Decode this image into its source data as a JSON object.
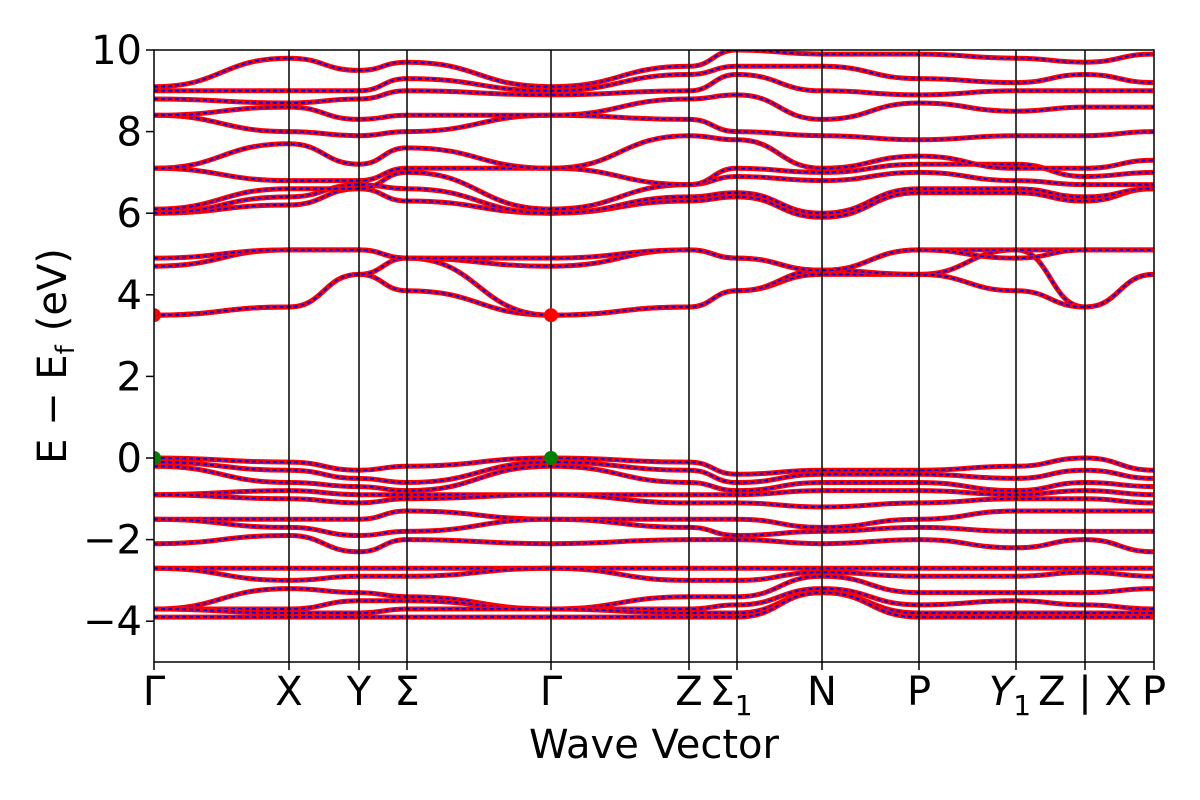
{
  "chart_data": {
    "type": "line",
    "title": "",
    "xlabel": "Wave Vector",
    "ylabel": "E − E",
    "ylabel_subscript": "f",
    "ylabel_unit": "(eV)",
    "ylim": [
      -5,
      10
    ],
    "xlim": [
      0,
      100
    ],
    "yticks": [
      -4,
      -2,
      0,
      2,
      4,
      6,
      8,
      10
    ],
    "ytick_labels": [
      "−4",
      "−2",
      "0",
      "2",
      "4",
      "6",
      "8",
      "10"
    ],
    "grid": false,
    "legend": "none",
    "kpoints": [
      {
        "x": 0,
        "label": "Γ"
      },
      {
        "x": 13.5,
        "label": "X"
      },
      {
        "x": 20.5,
        "label": "Y"
      },
      {
        "x": 25.3,
        "label": "Σ"
      },
      {
        "x": 39.7,
        "label": "Γ"
      },
      {
        "x": 53.5,
        "label": "Z"
      },
      {
        "x": 58.3,
        "label": "Σ",
        "sub": "1"
      },
      {
        "x": 66.8,
        "label": "N"
      },
      {
        "x": 76.5,
        "label": "P"
      },
      {
        "x": 86.2,
        "label": "Y",
        "sub": "1",
        "italic": true
      },
      {
        "x": 93.1,
        "label": "Z | X"
      },
      {
        "x": 100,
        "label": "P"
      }
    ],
    "band_style": {
      "outer_color": "#ff0000",
      "inner_color": "#0000ff",
      "dashed_inner": true
    },
    "extrema_markers": [
      {
        "kind": "cbm",
        "x": 0,
        "y": 3.5,
        "color": "#ff0000"
      },
      {
        "kind": "cbm",
        "x": 39.7,
        "y": 3.5,
        "color": "#ff0000"
      },
      {
        "kind": "vbm",
        "x": 0,
        "y": 0,
        "color": "#008000"
      },
      {
        "kind": "vbm",
        "x": 39.7,
        "y": 0,
        "color": "#008000"
      }
    ],
    "series": [
      {
        "values": [
          3.5,
          3.7,
          4.5,
          4.1,
          3.5,
          3.7,
          4.1,
          4.5,
          4.5,
          5.1,
          3.7,
          4.5
        ]
      },
      {
        "values": [
          3.5,
          3.7,
          4.5,
          4.9,
          3.5,
          3.7,
          4.1,
          4.6,
          4.5,
          4.1,
          3.7,
          4.5
        ]
      },
      {
        "values": [
          4.7,
          5.1,
          5.1,
          4.9,
          4.7,
          5.1,
          4.9,
          4.6,
          5.1,
          5.1,
          5.1,
          5.1
        ]
      },
      {
        "values": [
          4.9,
          5.1,
          5.1,
          4.9,
          4.9,
          5.1,
          4.9,
          4.6,
          5.1,
          4.9,
          5.1,
          5.1
        ]
      },
      {
        "values": [
          6.0,
          6.2,
          6.6,
          6.3,
          6.0,
          6.3,
          6.4,
          5.9,
          6.5,
          6.5,
          6.3,
          6.6
        ]
      },
      {
        "values": [
          6.0,
          6.4,
          6.7,
          6.6,
          6.0,
          6.4,
          6.5,
          6.0,
          6.6,
          6.6,
          6.4,
          6.6
        ]
      },
      {
        "values": [
          6.1,
          6.6,
          6.6,
          7.0,
          6.1,
          6.7,
          6.9,
          6.8,
          7.0,
          6.8,
          6.7,
          6.7
        ]
      },
      {
        "values": [
          7.1,
          6.8,
          6.8,
          7.1,
          7.1,
          6.7,
          7.1,
          7.0,
          7.2,
          7.2,
          6.9,
          7.0
        ]
      },
      {
        "values": [
          7.1,
          7.7,
          7.2,
          7.6,
          7.1,
          7.9,
          7.8,
          7.1,
          7.4,
          7.1,
          7.1,
          7.3
        ]
      },
      {
        "values": [
          8.4,
          8.0,
          7.9,
          8.0,
          8.4,
          8.3,
          8.0,
          7.9,
          7.8,
          7.9,
          7.9,
          8.0
        ]
      },
      {
        "values": [
          8.4,
          8.6,
          8.3,
          8.4,
          8.4,
          8.8,
          8.9,
          8.3,
          8.7,
          8.5,
          8.6,
          8.6
        ]
      },
      {
        "values": [
          8.8,
          8.7,
          8.8,
          9.0,
          8.9,
          9.0,
          9.4,
          9.0,
          8.9,
          9.0,
          9.0,
          9.0
        ]
      },
      {
        "values": [
          9.0,
          9.0,
          9.0,
          9.3,
          9.0,
          9.4,
          9.6,
          9.6,
          9.3,
          9.2,
          9.4,
          9.2
        ]
      },
      {
        "values": [
          9.1,
          9.8,
          9.5,
          9.7,
          9.1,
          9.6,
          10.0,
          9.9,
          9.9,
          9.8,
          9.7,
          9.9
        ]
      },
      {
        "values": [
          0.0,
          -0.1,
          -0.3,
          -0.2,
          0.0,
          -0.1,
          -0.4,
          -0.3,
          -0.3,
          -0.2,
          0.0,
          -0.3
        ]
      },
      {
        "values": [
          -0.1,
          -0.3,
          -0.5,
          -0.6,
          -0.1,
          -0.3,
          -0.6,
          -0.4,
          -0.4,
          -0.5,
          -0.3,
          -0.5
        ]
      },
      {
        "values": [
          -0.2,
          -0.6,
          -0.7,
          -0.8,
          -0.2,
          -0.6,
          -0.8,
          -0.6,
          -0.6,
          -0.8,
          -0.6,
          -0.7
        ]
      },
      {
        "values": [
          -0.9,
          -0.8,
          -0.9,
          -0.9,
          -0.9,
          -0.9,
          -0.9,
          -0.8,
          -0.8,
          -0.9,
          -0.8,
          -0.9
        ]
      },
      {
        "values": [
          -0.9,
          -1.0,
          -1.1,
          -1.0,
          -0.9,
          -1.1,
          -1.1,
          -1.2,
          -1.1,
          -1.0,
          -1.0,
          -1.1
        ]
      },
      {
        "values": [
          -1.5,
          -1.5,
          -1.5,
          -1.3,
          -1.5,
          -1.5,
          -1.5,
          -1.7,
          -1.5,
          -1.3,
          -1.3,
          -1.3
        ]
      },
      {
        "values": [
          -1.5,
          -1.7,
          -1.9,
          -1.8,
          -1.5,
          -1.7,
          -1.9,
          -1.8,
          -1.7,
          -1.8,
          -1.8,
          -1.8
        ]
      },
      {
        "values": [
          -2.1,
          -1.9,
          -2.3,
          -2.0,
          -2.1,
          -2.0,
          -2.0,
          -2.1,
          -2.0,
          -2.2,
          -2.0,
          -2.3
        ]
      },
      {
        "values": [
          -2.7,
          -2.7,
          -2.7,
          -2.7,
          -2.7,
          -2.7,
          -2.7,
          -2.7,
          -2.7,
          -2.7,
          -2.7,
          -2.7
        ]
      },
      {
        "values": [
          -2.7,
          -3.0,
          -2.9,
          -2.9,
          -2.7,
          -3.0,
          -3.0,
          -2.8,
          -2.9,
          -2.9,
          -2.8,
          -2.9
        ]
      },
      {
        "values": [
          -3.7,
          -3.2,
          -3.3,
          -3.4,
          -3.7,
          -3.4,
          -3.4,
          -2.9,
          -3.3,
          -3.3,
          -3.3,
          -3.2
        ]
      },
      {
        "values": [
          -3.7,
          -3.7,
          -3.5,
          -3.5,
          -3.7,
          -3.7,
          -3.6,
          -3.2,
          -3.6,
          -3.5,
          -3.6,
          -3.7
        ]
      },
      {
        "values": [
          -3.7,
          -3.8,
          -3.8,
          -3.7,
          -3.7,
          -3.8,
          -3.8,
          -3.3,
          -3.8,
          -3.8,
          -3.8,
          -3.8
        ]
      },
      {
        "values": [
          -3.9,
          -3.9,
          -3.9,
          -3.9,
          -3.9,
          -3.9,
          -3.9,
          -3.3,
          -3.9,
          -3.9,
          -3.9,
          -3.9
        ]
      }
    ]
  }
}
